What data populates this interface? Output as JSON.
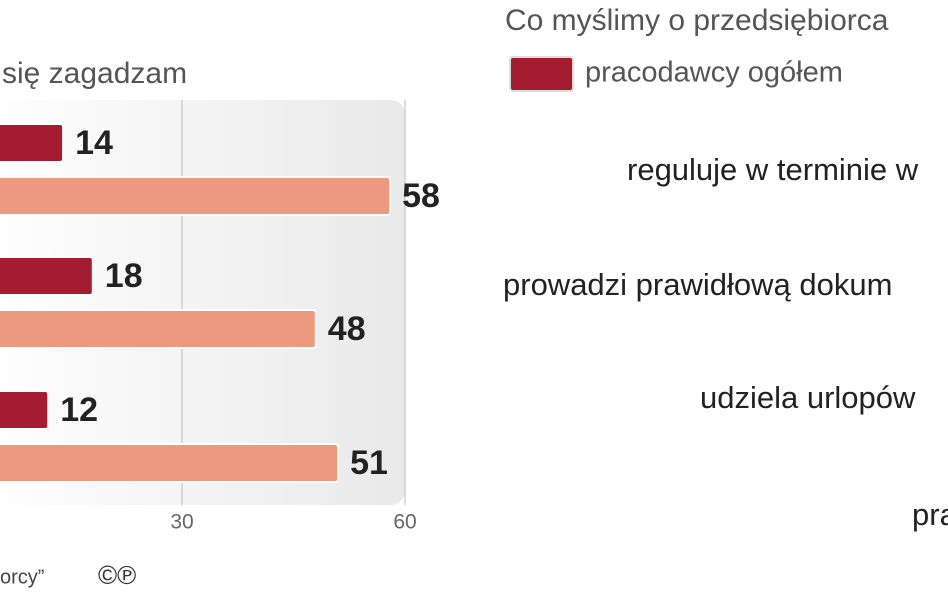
{
  "chart_data": {
    "type": "bar",
    "orientation": "horizontal",
    "subtitle": "się zagadzam",
    "categories": [
      null,
      null,
      null
    ],
    "series": [
      {
        "name": "pracodawcy ogółem",
        "color": "#a51c30",
        "values": [
          14,
          18,
          12
        ]
      },
      {
        "color": "#eb9a80",
        "values": [
          58,
          48,
          51
        ]
      }
    ],
    "xlim": [
      0,
      60
    ],
    "xticks": [
      30,
      60
    ],
    "grid": true,
    "source": "orcy”",
    "copyright": "©℗"
  },
  "right_panel": {
    "title": "Co myślimy o przedsiębiorca",
    "categories": [
      "reguluje w terminie w",
      "prowadzi prawidłową dokum",
      "udziela urlopów",
      "pra"
    ]
  }
}
